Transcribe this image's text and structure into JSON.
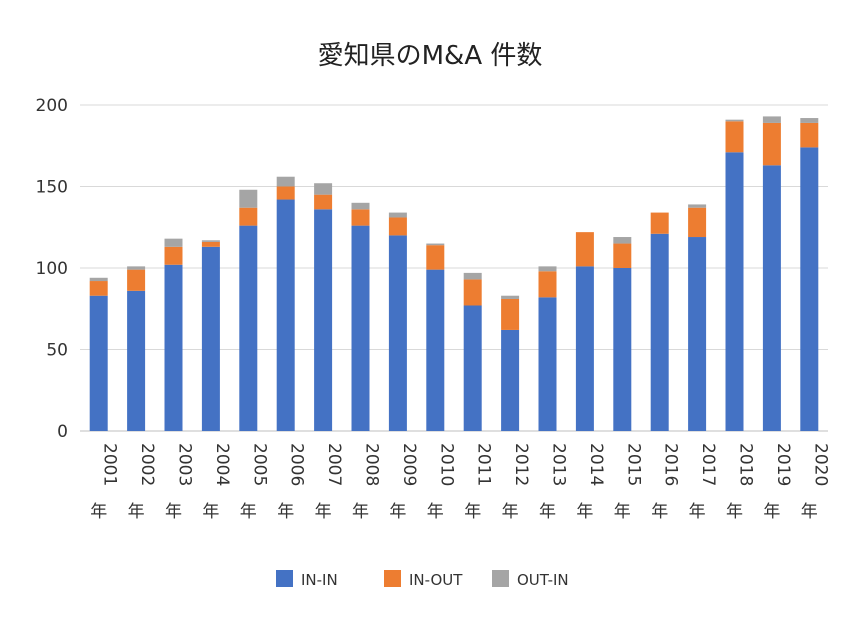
{
  "chart_data": {
    "type": "bar",
    "stacked": true,
    "title": "愛知県のM&A 件数",
    "xlabel": "",
    "ylabel": "",
    "ylim": [
      0,
      200
    ],
    "yticks": [
      "0",
      "50",
      "100",
      "150",
      "200"
    ],
    "categories": [
      "2001",
      "2002",
      "2003",
      "2004",
      "2005",
      "2006",
      "2007",
      "2008",
      "2009",
      "2010",
      "2011",
      "2012",
      "2013",
      "2014",
      "2015",
      "2016",
      "2017",
      "2018",
      "2019",
      "2020"
    ],
    "category_suffix": "年",
    "series": [
      {
        "name": "IN-IN",
        "color": "#4472c4",
        "values": [
          83,
          86,
          102,
          113,
          126,
          142,
          136,
          126,
          120,
          99,
          77,
          62,
          82,
          101,
          100,
          121,
          119,
          171,
          163,
          174
        ]
      },
      {
        "name": "IN-OUT",
        "color": "#ed7d31",
        "values": [
          9,
          13,
          11,
          3,
          11,
          8,
          9,
          10,
          11,
          15,
          16,
          19,
          16,
          21,
          15,
          13,
          18,
          19,
          26,
          15
        ]
      },
      {
        "name": "OUT-IN",
        "color": "#a5a5a5",
        "values": [
          2,
          2,
          5,
          1,
          11,
          6,
          7,
          4,
          3,
          1,
          4,
          2,
          3,
          0,
          4,
          0,
          2,
          1,
          4,
          3
        ]
      }
    ],
    "grid": true,
    "legend_position": "bottom"
  }
}
